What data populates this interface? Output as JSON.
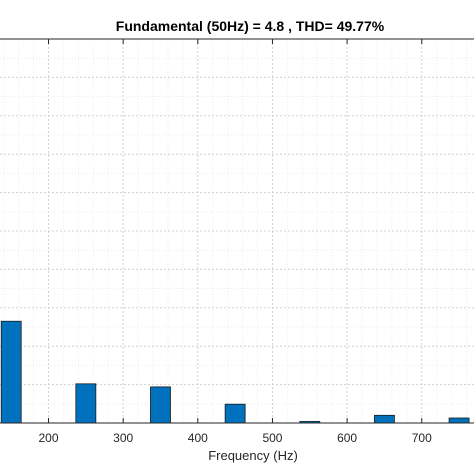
{
  "chart_data": {
    "type": "bar",
    "title": "Fundamental (50Hz) = 4.8 , THD= 49.77%",
    "xlabel": "Frequency (Hz)",
    "ylabel": "",
    "x_ticks": [
      200,
      300,
      400,
      500,
      600,
      700
    ],
    "xlim": [
      135,
      770
    ],
    "ylim": [
      0,
      100
    ],
    "grid": true,
    "bar_color": "#0072BD",
    "x": [
      150,
      250,
      350,
      450,
      550,
      650,
      750
    ],
    "values": [
      26.5,
      10.2,
      9.4,
      4.9,
      0.4,
      2.0,
      1.3
    ]
  }
}
